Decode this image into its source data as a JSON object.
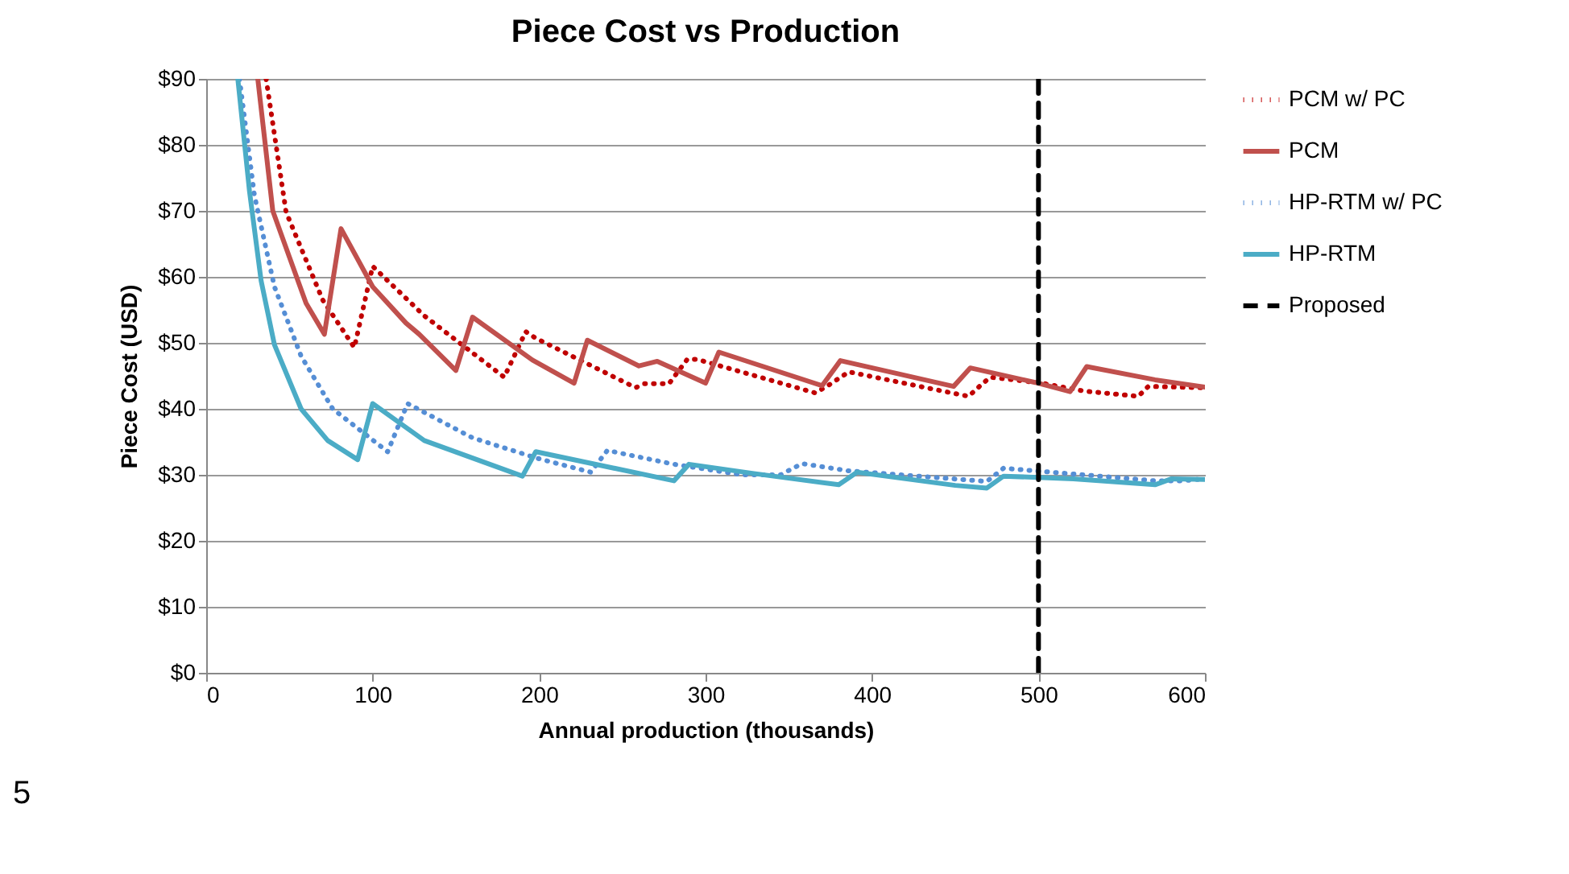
{
  "chart_data": {
    "type": "line",
    "title": "Piece Cost vs Production",
    "xlabel": "Annual production (thousands)",
    "ylabel": "Piece Cost (USD)",
    "xlim": [
      0,
      600
    ],
    "xticks": [
      0,
      100,
      200,
      300,
      400,
      500,
      600
    ],
    "ylim": [
      0,
      90
    ],
    "yticks": [
      {
        "value": 0,
        "label": "$0"
      },
      {
        "value": 10,
        "label": "$10"
      },
      {
        "value": 20,
        "label": "$20"
      },
      {
        "value": 30,
        "label": "$30"
      },
      {
        "value": 40,
        "label": "$40"
      },
      {
        "value": 50,
        "label": "$50"
      },
      {
        "value": 60,
        "label": "$60"
      },
      {
        "value": 70,
        "label": "$70"
      },
      {
        "value": 80,
        "label": "$80"
      },
      {
        "value": 90,
        "label": "$90"
      }
    ],
    "grid": "y",
    "legend": "right",
    "marker": "none",
    "series": [
      {
        "name": "PCM w/ PC",
        "color": "#c00000",
        "line_style": "dotted",
        "x": [
          36,
          48,
          70,
          89,
          100,
          131,
          179,
          192,
          198,
          258,
          263,
          278,
          289,
          295,
          366,
          374,
          386,
          450,
          458,
          465,
          471,
          502,
          527,
          560,
          566,
          600
        ],
        "values": [
          90,
          69.8,
          56.5,
          49.3,
          61.6,
          54.1,
          44.8,
          51.7,
          50.7,
          43.2,
          43.8,
          43.8,
          47.5,
          47.5,
          42.4,
          43.6,
          45.6,
          42.3,
          41.9,
          43.5,
          44.8,
          43.9,
          42.7,
          41.9,
          43.4,
          43.2
        ]
      },
      {
        "name": "PCM",
        "color": "#c0504d",
        "line_style": "solid",
        "x": [
          31,
          40,
          50,
          60,
          71,
          81,
          100,
          120,
          128,
          150,
          160,
          196,
          221,
          229,
          260,
          271,
          300,
          308,
          370,
          381,
          449,
          459,
          498,
          519,
          529,
          570,
          600
        ],
        "values": [
          90,
          70,
          63,
          56,
          51.3,
          67.3,
          58.5,
          53,
          51.3,
          45.8,
          53.9,
          47.4,
          43.9,
          50.4,
          46.5,
          47.2,
          43.9,
          48.6,
          43.5,
          47.3,
          43.4,
          46.2,
          44,
          42.6,
          46.4,
          44.4,
          43.3
        ]
      },
      {
        "name": "HP-RTM w/ PC",
        "color": "#558ed5",
        "line_style": "dotted",
        "x": [
          20,
          29,
          41,
          57,
          76,
          109,
          121,
          160,
          199,
          231,
          241,
          281,
          322,
          345,
          358,
          386,
          469,
          479,
          570,
          587,
          600
        ],
        "values": [
          90,
          72.3,
          58.5,
          48,
          40,
          33.5,
          40.8,
          35.6,
          32.5,
          30.4,
          33.7,
          31.6,
          30,
          30,
          31.7,
          30.6,
          29,
          31,
          29.1,
          29.1,
          29.4
        ]
      },
      {
        "name": "HP-RTM",
        "color": "#4bacc6",
        "line_style": "solid",
        "x": [
          19,
          26,
          33,
          41,
          57,
          73,
          91,
          100,
          131,
          190,
          198,
          281,
          290,
          329,
          380,
          391,
          450,
          469,
          479,
          521,
          570,
          580,
          600
        ],
        "values": [
          90,
          73,
          59.4,
          49.7,
          40,
          35.2,
          32.3,
          40.8,
          35.2,
          29.8,
          33.5,
          29.1,
          31.6,
          30.2,
          28.5,
          30.4,
          28.4,
          28,
          29.8,
          29.4,
          28.5,
          29.4,
          29.3
        ]
      },
      {
        "name": "Proposed",
        "type": "line",
        "color": "#000000",
        "line_style": "dashed",
        "x": [
          500,
          500
        ],
        "values": [
          0,
          90
        ]
      }
    ],
    "annotations": [
      "5"
    ]
  }
}
